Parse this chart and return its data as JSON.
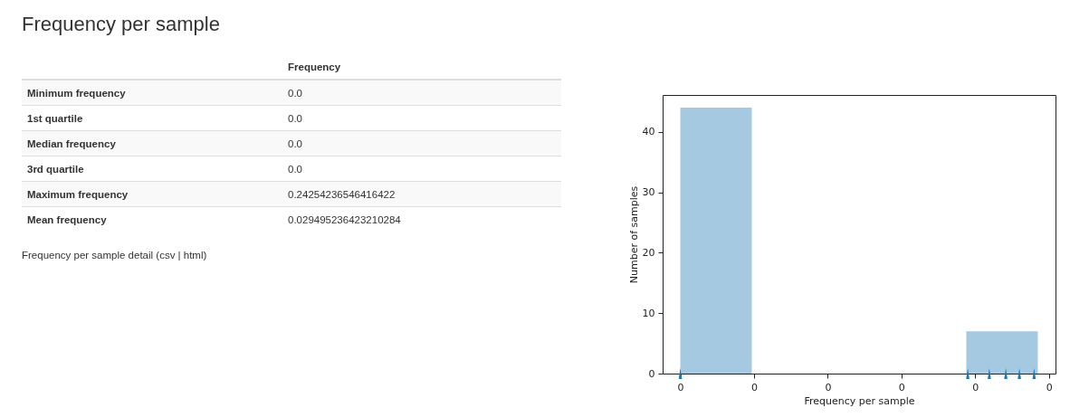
{
  "chart_data": [
    {
      "type": "other",
      "title": "Frequency per sample",
      "annotations": [
        "Frequency",
        "Minimum frequency",
        "0.0",
        "1st quartile",
        "0.0",
        "Median frequency",
        "0.0",
        "3rd quartile",
        "0.0",
        "Maximum frequency",
        "0.24254236546416422",
        "Mean frequency",
        "0.029495236423210284",
        "Frequency per sample detail (csv | html)"
      ]
    },
    {
      "type": "histogram",
      "xlabel": "Frequency per sample",
      "ylabel": "Number of samples",
      "bins": [
        0,
        0.0485,
        0.097,
        0.1455,
        0.194,
        0.2425
      ],
      "values": [
        44,
        0,
        0,
        0,
        7
      ],
      "color": "#a5c9e1",
      "series": [
        {
          "type": "scatter",
          "color": "#1f77b4",
          "x": [
            0,
            0.195,
            0.2096,
            0.2208,
            0.23,
            0.24
          ],
          "values": [
            0,
            0,
            0,
            0,
            0,
            0
          ]
        }
      ],
      "xlim": [
        -0.012,
        0.2545
      ],
      "ylim": [
        0,
        46.1
      ],
      "xticks": [
        {
          "value": 0,
          "label": "0"
        },
        {
          "value": 0.05,
          "label": "0"
        },
        {
          "value": 0.1,
          "label": "0"
        },
        {
          "value": 0.15,
          "label": "0"
        },
        {
          "value": 0.2,
          "label": "0"
        },
        {
          "value": 0.25,
          "label": "0"
        }
      ],
      "yticks": [
        0,
        10,
        20,
        30,
        40
      ],
      "grid": false
    }
  ]
}
